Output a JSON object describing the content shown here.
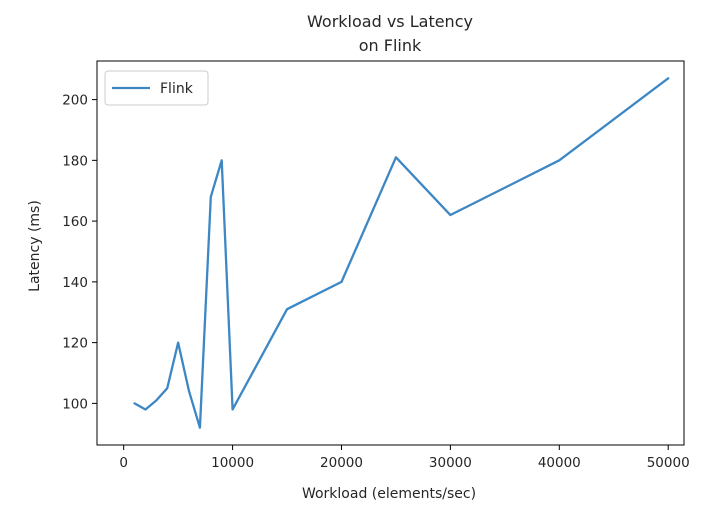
{
  "chart_data": {
    "type": "line",
    "title": "Workload vs Latency",
    "subtitle": "on Flink",
    "xlabel": "Workload (elements/sec)",
    "ylabel": "Latency (ms)",
    "xlim": [
      -2450,
      51450
    ],
    "ylim": [
      86.3,
      212.7
    ],
    "xticks": [
      0,
      10000,
      20000,
      30000,
      40000,
      50000
    ],
    "yticks": [
      100,
      120,
      140,
      160,
      180,
      200
    ],
    "grid": false,
    "legend_position": "top-left",
    "series": [
      {
        "name": "Flink",
        "color": "#3c87c4",
        "x": [
          1000,
          2000,
          3000,
          4000,
          5000,
          6000,
          7000,
          8000,
          9000,
          10000,
          15000,
          20000,
          25000,
          30000,
          40000,
          50000
        ],
        "y": [
          100,
          98,
          101,
          105,
          120,
          104,
          92,
          168,
          180,
          98,
          131,
          140,
          181,
          162,
          180,
          207
        ]
      }
    ]
  }
}
